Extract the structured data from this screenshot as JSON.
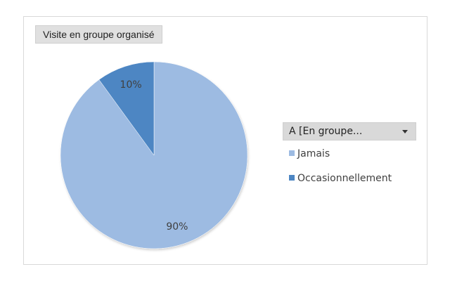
{
  "chart_data": {
    "type": "pie",
    "title": "Visite en groupe organisé",
    "legend_title": "A [En groupe...",
    "legend_position": "right",
    "slices": [
      {
        "label": "Jamais",
        "value": 90,
        "value_label": "90%",
        "color": "#9dbbe2"
      },
      {
        "label": "Occasionnellement",
        "value": 10,
        "value_label": "10%",
        "color": "#4d86c3"
      }
    ]
  }
}
